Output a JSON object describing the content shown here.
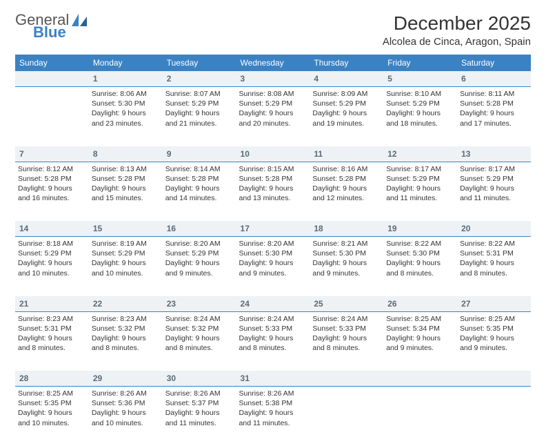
{
  "logo": {
    "word1": "General",
    "word2": "Blue"
  },
  "header": {
    "title": "December 2025",
    "location": "Alcolea de Cinca, Aragon, Spain"
  },
  "colors": {
    "header_bg": "#3b82c4",
    "header_text": "#ffffff",
    "daynum_bg": "#eef2f5",
    "daynum_border": "#3b82c4",
    "daynum_text": "#5a6a78",
    "body_text": "#333333",
    "logo_gray": "#555555",
    "logo_blue": "#3b82c4"
  },
  "weekdays": [
    "Sunday",
    "Monday",
    "Tuesday",
    "Wednesday",
    "Thursday",
    "Friday",
    "Saturday"
  ],
  "grid": [
    [
      {
        "n": "",
        "sr": "",
        "ss": "",
        "dl": ""
      },
      {
        "n": "1",
        "sr": "8:06 AM",
        "ss": "5:30 PM",
        "dl": "9 hours and 23 minutes."
      },
      {
        "n": "2",
        "sr": "8:07 AM",
        "ss": "5:29 PM",
        "dl": "9 hours and 21 minutes."
      },
      {
        "n": "3",
        "sr": "8:08 AM",
        "ss": "5:29 PM",
        "dl": "9 hours and 20 minutes."
      },
      {
        "n": "4",
        "sr": "8:09 AM",
        "ss": "5:29 PM",
        "dl": "9 hours and 19 minutes."
      },
      {
        "n": "5",
        "sr": "8:10 AM",
        "ss": "5:29 PM",
        "dl": "9 hours and 18 minutes."
      },
      {
        "n": "6",
        "sr": "8:11 AM",
        "ss": "5:28 PM",
        "dl": "9 hours and 17 minutes."
      }
    ],
    [
      {
        "n": "7",
        "sr": "8:12 AM",
        "ss": "5:28 PM",
        "dl": "9 hours and 16 minutes."
      },
      {
        "n": "8",
        "sr": "8:13 AM",
        "ss": "5:28 PM",
        "dl": "9 hours and 15 minutes."
      },
      {
        "n": "9",
        "sr": "8:14 AM",
        "ss": "5:28 PM",
        "dl": "9 hours and 14 minutes."
      },
      {
        "n": "10",
        "sr": "8:15 AM",
        "ss": "5:28 PM",
        "dl": "9 hours and 13 minutes."
      },
      {
        "n": "11",
        "sr": "8:16 AM",
        "ss": "5:28 PM",
        "dl": "9 hours and 12 minutes."
      },
      {
        "n": "12",
        "sr": "8:17 AM",
        "ss": "5:29 PM",
        "dl": "9 hours and 11 minutes."
      },
      {
        "n": "13",
        "sr": "8:17 AM",
        "ss": "5:29 PM",
        "dl": "9 hours and 11 minutes."
      }
    ],
    [
      {
        "n": "14",
        "sr": "8:18 AM",
        "ss": "5:29 PM",
        "dl": "9 hours and 10 minutes."
      },
      {
        "n": "15",
        "sr": "8:19 AM",
        "ss": "5:29 PM",
        "dl": "9 hours and 10 minutes."
      },
      {
        "n": "16",
        "sr": "8:20 AM",
        "ss": "5:29 PM",
        "dl": "9 hours and 9 minutes."
      },
      {
        "n": "17",
        "sr": "8:20 AM",
        "ss": "5:30 PM",
        "dl": "9 hours and 9 minutes."
      },
      {
        "n": "18",
        "sr": "8:21 AM",
        "ss": "5:30 PM",
        "dl": "9 hours and 9 minutes."
      },
      {
        "n": "19",
        "sr": "8:22 AM",
        "ss": "5:30 PM",
        "dl": "9 hours and 8 minutes."
      },
      {
        "n": "20",
        "sr": "8:22 AM",
        "ss": "5:31 PM",
        "dl": "9 hours and 8 minutes."
      }
    ],
    [
      {
        "n": "21",
        "sr": "8:23 AM",
        "ss": "5:31 PM",
        "dl": "9 hours and 8 minutes."
      },
      {
        "n": "22",
        "sr": "8:23 AM",
        "ss": "5:32 PM",
        "dl": "9 hours and 8 minutes."
      },
      {
        "n": "23",
        "sr": "8:24 AM",
        "ss": "5:32 PM",
        "dl": "9 hours and 8 minutes."
      },
      {
        "n": "24",
        "sr": "8:24 AM",
        "ss": "5:33 PM",
        "dl": "9 hours and 8 minutes."
      },
      {
        "n": "25",
        "sr": "8:24 AM",
        "ss": "5:33 PM",
        "dl": "9 hours and 8 minutes."
      },
      {
        "n": "26",
        "sr": "8:25 AM",
        "ss": "5:34 PM",
        "dl": "9 hours and 9 minutes."
      },
      {
        "n": "27",
        "sr": "8:25 AM",
        "ss": "5:35 PM",
        "dl": "9 hours and 9 minutes."
      }
    ],
    [
      {
        "n": "28",
        "sr": "8:25 AM",
        "ss": "5:35 PM",
        "dl": "9 hours and 10 minutes."
      },
      {
        "n": "29",
        "sr": "8:26 AM",
        "ss": "5:36 PM",
        "dl": "9 hours and 10 minutes."
      },
      {
        "n": "30",
        "sr": "8:26 AM",
        "ss": "5:37 PM",
        "dl": "9 hours and 11 minutes."
      },
      {
        "n": "31",
        "sr": "8:26 AM",
        "ss": "5:38 PM",
        "dl": "9 hours and 11 minutes."
      },
      {
        "n": "",
        "sr": "",
        "ss": "",
        "dl": ""
      },
      {
        "n": "",
        "sr": "",
        "ss": "",
        "dl": ""
      },
      {
        "n": "",
        "sr": "",
        "ss": "",
        "dl": ""
      }
    ]
  ],
  "labels": {
    "sunrise": "Sunrise:",
    "sunset": "Sunset:",
    "daylight": "Daylight:"
  }
}
